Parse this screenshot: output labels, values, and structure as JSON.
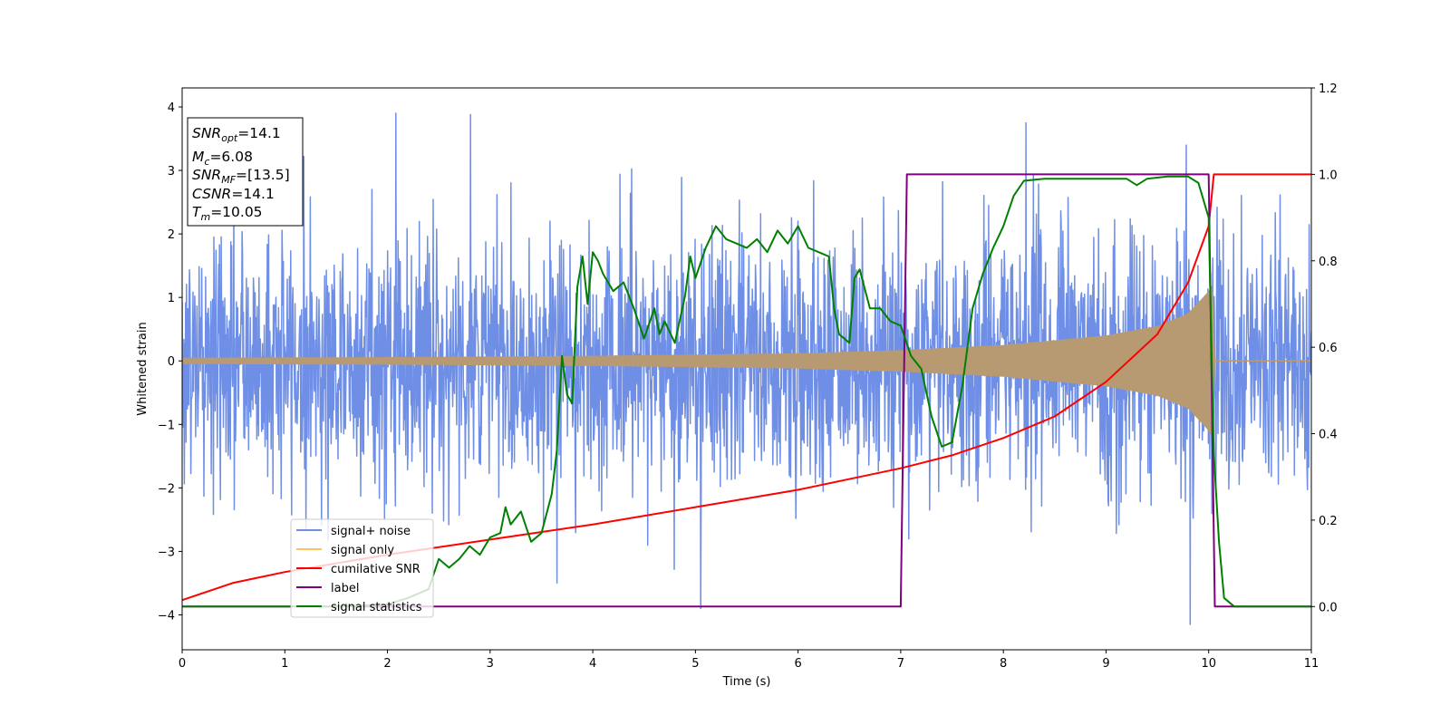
{
  "chart_data": {
    "type": "line",
    "title": "",
    "xlabel": "Time (s)",
    "ylabel": "Whitened strain",
    "xlim": [
      0,
      11
    ],
    "ylim_left": [
      -4.55,
      4.3
    ],
    "ylim_right": [
      -0.1,
      1.2
    ],
    "x_ticks": [
      "0",
      "1",
      "2",
      "3",
      "4",
      "5",
      "6",
      "7",
      "8",
      "9",
      "10",
      "11"
    ],
    "y_ticks_left": [
      "4",
      "3",
      "2",
      "1",
      "0",
      "−1",
      "−2",
      "−3",
      "−4"
    ],
    "y_ticks_left_values": [
      4,
      3,
      2,
      1,
      0,
      -1,
      -2,
      -3,
      -4
    ],
    "y_ticks_right": [
      "1.2",
      "1.0",
      "0.8",
      "0.6",
      "0.4",
      "0.2",
      "0.0"
    ],
    "y_ticks_right_values": [
      1.2,
      1.0,
      0.8,
      0.6,
      0.4,
      0.2,
      0.0
    ],
    "colors": {
      "signal_noise": "#6f8fe6",
      "signal_only": "#ffc266",
      "signal_overlap": "#b89a72",
      "cumulative_snr": "#ff0000",
      "label": "#800080",
      "signal_statistics": "#008000"
    },
    "annotation": {
      "snr_opt": {
        "base": "SNR",
        "sub": "opt",
        "value": "=14.1"
      },
      "mc": {
        "base": "M",
        "sub": "c",
        "value": "=6.08"
      },
      "snr_mf": {
        "base": "SNR",
        "sub": "MF",
        "value": "=[13.5]"
      },
      "csnr": {
        "base": "CSNR",
        "value": "=14.1"
      },
      "tm": {
        "base": "T",
        "sub": "m",
        "value": "=10.05"
      }
    },
    "legend": {
      "placement": "lower-left",
      "entries": [
        "signal+ noise",
        "signal only",
        "cumilative SNR",
        "label",
        "signal statistics"
      ]
    },
    "series": [
      {
        "name": "signal+ noise",
        "axis": "left",
        "kind": "noise-trace",
        "sigma": 1.0,
        "range": [
          -4.15,
          3.9
        ],
        "visible_peaks": [
          [
            2.08,
            3.9
          ],
          [
            2.81,
            3.88
          ],
          [
            8.22,
            3.75
          ],
          [
            9.78,
            3.4
          ],
          [
            5.05,
            -3.9
          ],
          [
            9.82,
            -4.15
          ],
          [
            3.65,
            -3.5
          ]
        ]
      },
      {
        "name": "signal only",
        "axis": "left",
        "kind": "chirp",
        "envelope": [
          [
            0,
            0.05
          ],
          [
            2,
            0.06
          ],
          [
            4,
            0.08
          ],
          [
            6,
            0.12
          ],
          [
            7,
            0.17
          ],
          [
            8,
            0.25
          ],
          [
            9,
            0.4
          ],
          [
            9.5,
            0.55
          ],
          [
            9.8,
            0.75
          ],
          [
            10.0,
            1.1
          ],
          [
            10.05,
            1.25
          ],
          [
            10.06,
            0.0
          ],
          [
            11,
            0.0
          ]
        ]
      },
      {
        "name": "cumilative SNR",
        "axis": "right",
        "points": [
          [
            0,
            0.015
          ],
          [
            0.5,
            0.055
          ],
          [
            1,
            0.08
          ],
          [
            2,
            0.12
          ],
          [
            3,
            0.155
          ],
          [
            4,
            0.19
          ],
          [
            5,
            0.23
          ],
          [
            6,
            0.27
          ],
          [
            7,
            0.32
          ],
          [
            7.5,
            0.35
          ],
          [
            8,
            0.39
          ],
          [
            8.5,
            0.44
          ],
          [
            9,
            0.52
          ],
          [
            9.5,
            0.63
          ],
          [
            9.8,
            0.75
          ],
          [
            10.0,
            0.88
          ],
          [
            10.05,
            1.0
          ],
          [
            11,
            1.0
          ]
        ]
      },
      {
        "name": "label",
        "axis": "right",
        "points": [
          [
            0,
            0.0
          ],
          [
            7.0,
            0.0
          ],
          [
            7.06,
            1.0
          ],
          [
            10.0,
            1.0
          ],
          [
            10.06,
            0.0
          ],
          [
            11,
            0.0
          ]
        ]
      },
      {
        "name": "signal statistics",
        "axis": "right",
        "points": [
          [
            0,
            0.0
          ],
          [
            0.5,
            0.0
          ],
          [
            1.0,
            0.0
          ],
          [
            1.5,
            0.0
          ],
          [
            2.0,
            0.005
          ],
          [
            2.2,
            0.02
          ],
          [
            2.4,
            0.04
          ],
          [
            2.5,
            0.11
          ],
          [
            2.6,
            0.09
          ],
          [
            2.7,
            0.11
          ],
          [
            2.8,
            0.14
          ],
          [
            2.9,
            0.12
          ],
          [
            3.0,
            0.16
          ],
          [
            3.1,
            0.17
          ],
          [
            3.15,
            0.23
          ],
          [
            3.2,
            0.19
          ],
          [
            3.3,
            0.22
          ],
          [
            3.4,
            0.15
          ],
          [
            3.5,
            0.17
          ],
          [
            3.6,
            0.26
          ],
          [
            3.65,
            0.36
          ],
          [
            3.7,
            0.58
          ],
          [
            3.75,
            0.49
          ],
          [
            3.8,
            0.47
          ],
          [
            3.85,
            0.74
          ],
          [
            3.9,
            0.81
          ],
          [
            3.95,
            0.7
          ],
          [
            4.0,
            0.82
          ],
          [
            4.05,
            0.8
          ],
          [
            4.1,
            0.77
          ],
          [
            4.2,
            0.73
          ],
          [
            4.3,
            0.75
          ],
          [
            4.4,
            0.69
          ],
          [
            4.5,
            0.62
          ],
          [
            4.6,
            0.69
          ],
          [
            4.65,
            0.63
          ],
          [
            4.7,
            0.66
          ],
          [
            4.8,
            0.61
          ],
          [
            4.9,
            0.72
          ],
          [
            4.95,
            0.81
          ],
          [
            5.0,
            0.76
          ],
          [
            5.1,
            0.83
          ],
          [
            5.2,
            0.88
          ],
          [
            5.3,
            0.85
          ],
          [
            5.4,
            0.84
          ],
          [
            5.5,
            0.83
          ],
          [
            5.6,
            0.85
          ],
          [
            5.7,
            0.82
          ],
          [
            5.8,
            0.87
          ],
          [
            5.9,
            0.84
          ],
          [
            6.0,
            0.88
          ],
          [
            6.1,
            0.83
          ],
          [
            6.2,
            0.82
          ],
          [
            6.3,
            0.81
          ],
          [
            6.35,
            0.69
          ],
          [
            6.4,
            0.63
          ],
          [
            6.5,
            0.61
          ],
          [
            6.55,
            0.76
          ],
          [
            6.6,
            0.78
          ],
          [
            6.7,
            0.69
          ],
          [
            6.8,
            0.69
          ],
          [
            6.9,
            0.66
          ],
          [
            7.0,
            0.65
          ],
          [
            7.1,
            0.58
          ],
          [
            7.2,
            0.55
          ],
          [
            7.3,
            0.44
          ],
          [
            7.4,
            0.37
          ],
          [
            7.5,
            0.38
          ],
          [
            7.6,
            0.51
          ],
          [
            7.7,
            0.69
          ],
          [
            7.8,
            0.77
          ],
          [
            7.9,
            0.83
          ],
          [
            8.0,
            0.88
          ],
          [
            8.1,
            0.95
          ],
          [
            8.2,
            0.985
          ],
          [
            8.4,
            0.99
          ],
          [
            8.6,
            0.99
          ],
          [
            8.8,
            0.99
          ],
          [
            9.0,
            0.99
          ],
          [
            9.2,
            0.99
          ],
          [
            9.3,
            0.975
          ],
          [
            9.4,
            0.99
          ],
          [
            9.6,
            0.995
          ],
          [
            9.8,
            0.995
          ],
          [
            9.9,
            0.98
          ],
          [
            10.0,
            0.9
          ],
          [
            10.05,
            0.35
          ],
          [
            10.1,
            0.15
          ],
          [
            10.15,
            0.02
          ],
          [
            10.25,
            0.0
          ],
          [
            11,
            0.0
          ]
        ]
      }
    ]
  }
}
